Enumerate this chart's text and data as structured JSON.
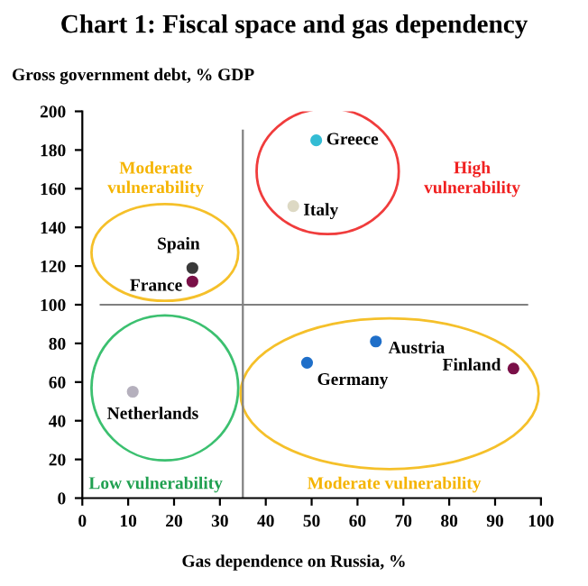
{
  "chart_data": {
    "type": "scatter",
    "title": "Chart 1: Fiscal space and gas dependency",
    "ylabel": "Gross government debt, % GDP",
    "xlabel": "Gas dependence on Russia, %",
    "xlim": [
      0,
      100
    ],
    "xticks": [
      0,
      10,
      20,
      30,
      40,
      50,
      60,
      70,
      80,
      90,
      100
    ],
    "ylim": [
      0,
      200
    ],
    "yticks": [
      0,
      20,
      40,
      60,
      80,
      100,
      120,
      140,
      160,
      180,
      200
    ],
    "grid": false,
    "legend": false,
    "marker": "circle",
    "series": [
      {
        "name": "Greece",
        "color": "#33bcd4",
        "x": [
          51
        ],
        "values": [
          185
        ]
      },
      {
        "name": "Italy",
        "color": "#ddd9c4",
        "x": [
          46
        ],
        "values": [
          151
        ]
      },
      {
        "name": "Spain",
        "color": "#3a3a3a",
        "x": [
          24
        ],
        "values": [
          119
        ]
      },
      {
        "name": "France",
        "color": "#7a1048",
        "x": [
          24
        ],
        "values": [
          112
        ]
      },
      {
        "name": "Netherlands",
        "color": "#b5b0bd",
        "x": [
          11
        ],
        "values": [
          55
        ]
      },
      {
        "name": "Germany",
        "color": "#1f6fc9",
        "x": [
          49
        ],
        "values": [
          70
        ]
      },
      {
        "name": "Austria",
        "color": "#1f6fc9",
        "x": [
          64
        ],
        "values": [
          81
        ]
      },
      {
        "name": "Finland",
        "color": "#7a1048",
        "x": [
          94
        ],
        "values": [
          67
        ]
      }
    ],
    "ref_lines": [
      {
        "axis": "y",
        "value": 100,
        "color": "#808080"
      },
      {
        "axis": "x",
        "value": 35,
        "color": "#808080"
      }
    ],
    "annotations": [
      "Moderate vulnerability",
      "High vulnerability",
      "Low vulnerability",
      "Moderate vulnerability"
    ]
  }
}
